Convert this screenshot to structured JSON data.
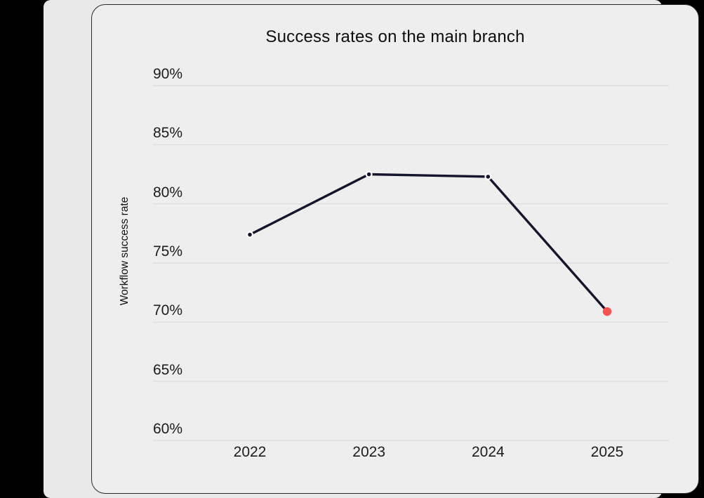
{
  "page": {
    "background_color": "#000000",
    "frame_color": "#e9e9e9",
    "card_background": "#eeeeee",
    "card_border_color": "#2a2a2a"
  },
  "chart_data": {
    "type": "line",
    "title": "Success rates on the main branch",
    "xlabel": "",
    "ylabel": "Workflow success rate",
    "categories": [
      "2022",
      "2023",
      "2024",
      "2025"
    ],
    "values": [
      77.4,
      82.5,
      82.3,
      70.9
    ],
    "ylim": [
      60,
      90
    ],
    "yticks": [
      90,
      85,
      80,
      75,
      70,
      65,
      60
    ],
    "ytick_labels": [
      "90%",
      "85%",
      "80%",
      "75%",
      "70%",
      "65%",
      "60%"
    ],
    "grid": "horizontal",
    "legend": "none",
    "line_color": "#15152d",
    "marker_color": "#15152d",
    "marker_ring_color": "#ffffff",
    "highlight_index": 3,
    "highlight_color": "#f4514f",
    "gridline_color": "#dcdcdc"
  }
}
